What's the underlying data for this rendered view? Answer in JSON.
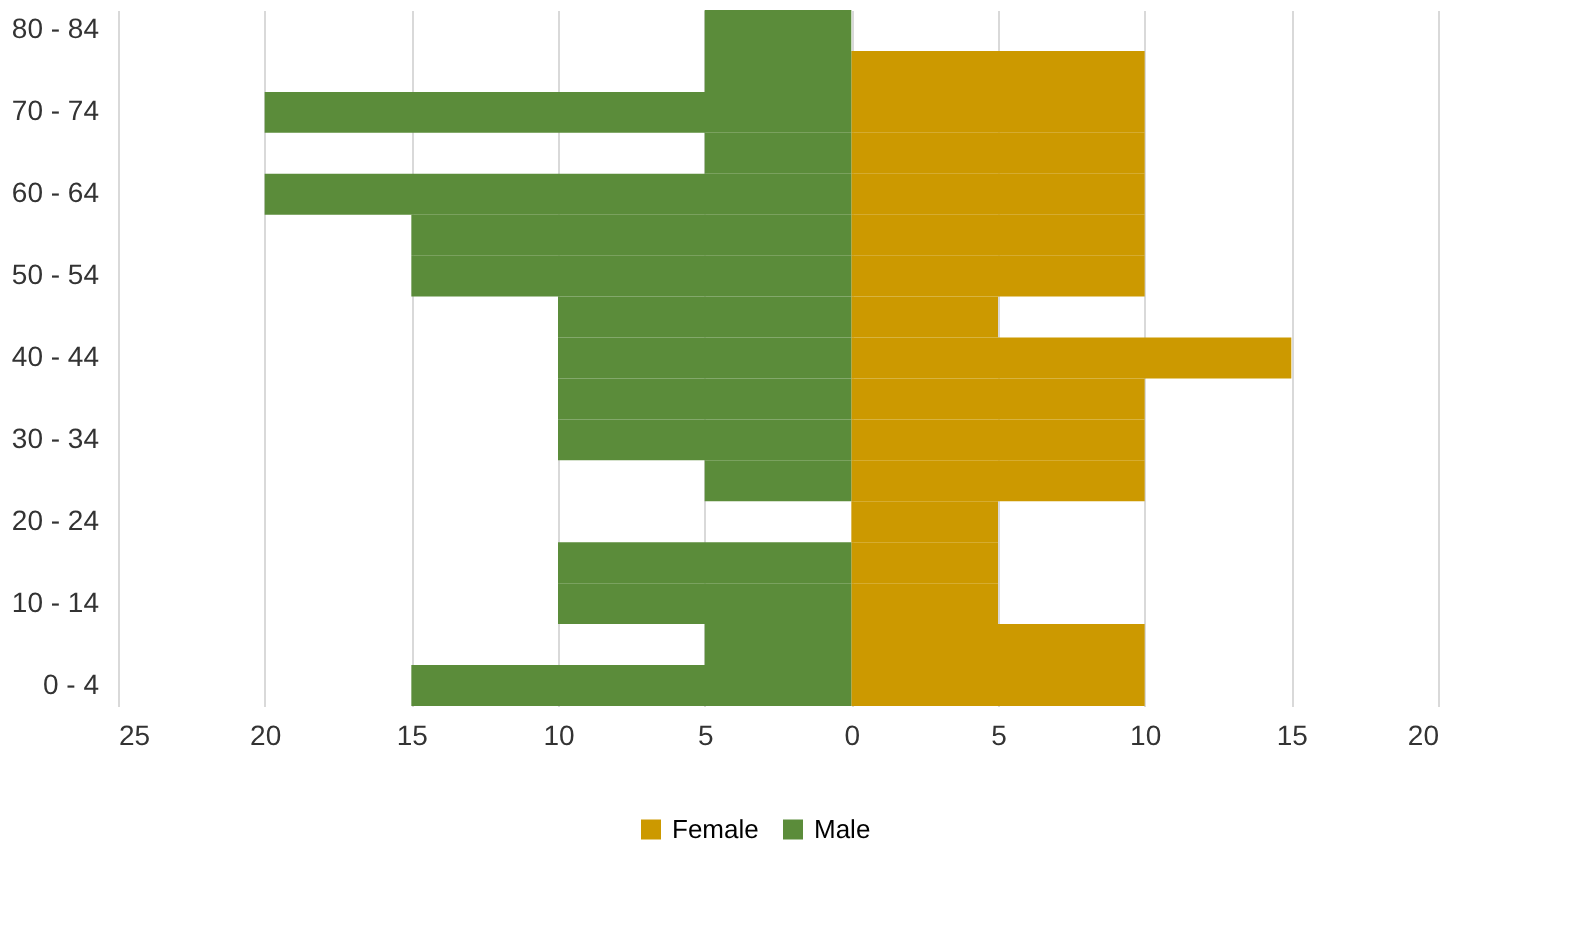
{
  "chart_data": {
    "type": "bar",
    "orientation": "horizontal",
    "categories": [
      "80 - 84",
      null,
      "70 - 74",
      null,
      "60 - 64",
      null,
      "50 - 54",
      null,
      "40 - 44",
      null,
      "30 - 34",
      null,
      "20 - 24",
      null,
      "10 - 14",
      null,
      "0 - 4"
    ],
    "series": [
      {
        "name": "Female",
        "color": "#cc9900",
        "values": [
          0,
          10,
          10,
          10,
          10,
          10,
          10,
          5,
          15,
          10,
          10,
          10,
          5,
          5,
          5,
          10,
          10
        ]
      },
      {
        "name": "Male",
        "color": "#5b8c3a",
        "values": [
          -5,
          -5,
          -20,
          -5,
          -20,
          -15,
          -15,
          -10,
          -10,
          -10,
          -10,
          -5,
          0,
          -10,
          -10,
          -5,
          -15
        ]
      }
    ],
    "xlim": [
      -25,
      20
    ],
    "xticks": [
      {
        "value": -25,
        "label": "25"
      },
      {
        "value": -20,
        "label": "20"
      },
      {
        "value": -15,
        "label": "15"
      },
      {
        "value": -10,
        "label": "10"
      },
      {
        "value": -5,
        "label": "5"
      },
      0,
      5,
      10,
      15,
      20
    ],
    "stacked": true,
    "grid": "x",
    "legend": "bottom"
  }
}
